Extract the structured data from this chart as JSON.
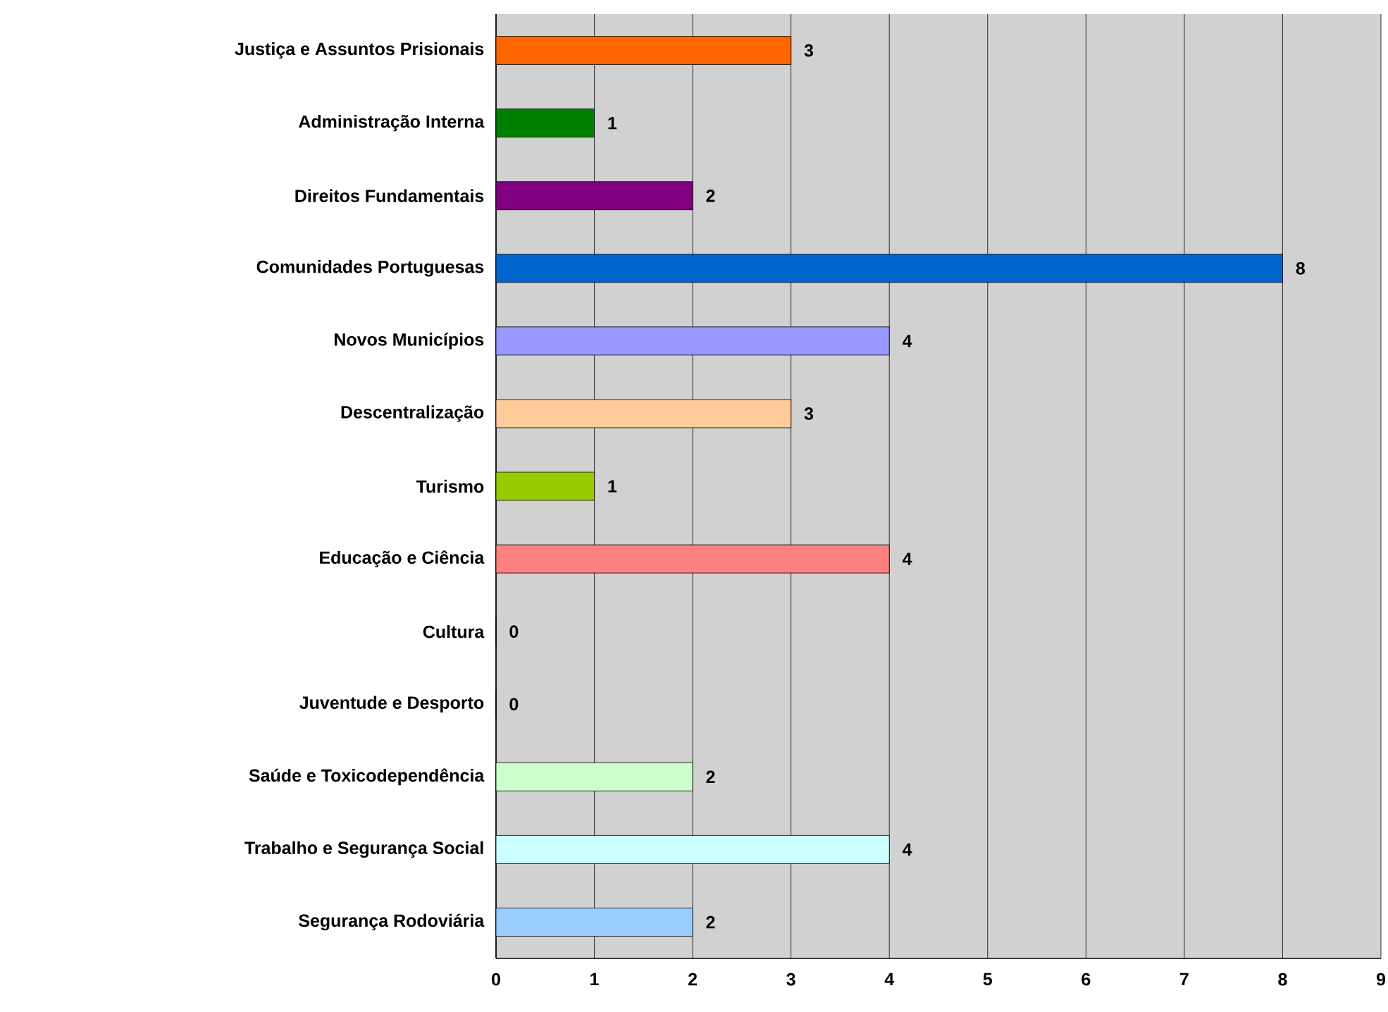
{
  "chart_data": {
    "type": "bar",
    "orientation": "horizontal",
    "categories": [
      "Justiça e Assuntos Prisionais",
      "Administração Interna",
      "Direitos Fundamentais",
      "Comunidades Portuguesas",
      "Novos Municípios",
      "Descentralização",
      "Turismo",
      "Educação e Ciência",
      "Cultura",
      "Juventude e Desporto",
      "Saúde e Toxicodependência",
      "Trabalho e Segurança Social",
      "Segurança Rodoviária"
    ],
    "values": [
      3,
      1,
      2,
      8,
      4,
      3,
      1,
      4,
      0,
      0,
      2,
      4,
      2
    ],
    "value_labels": [
      "3",
      "1",
      "2",
      "8",
      "4",
      "3",
      "1",
      "4",
      "0",
      "0",
      "2",
      "4",
      "2"
    ],
    "colors": [
      "#ff6600",
      "#008000",
      "#800080",
      "#0066cc",
      "#9999ff",
      "#ffcc99",
      "#99cc00",
      "#ff8080",
      "#ffffff",
      "#ffffff",
      "#ccffcc",
      "#ccffff",
      "#99ccff"
    ],
    "xlim": [
      0,
      9
    ],
    "xticks": [
      0,
      1,
      2,
      3,
      4,
      5,
      6,
      7,
      8,
      9
    ],
    "grid": "x"
  }
}
